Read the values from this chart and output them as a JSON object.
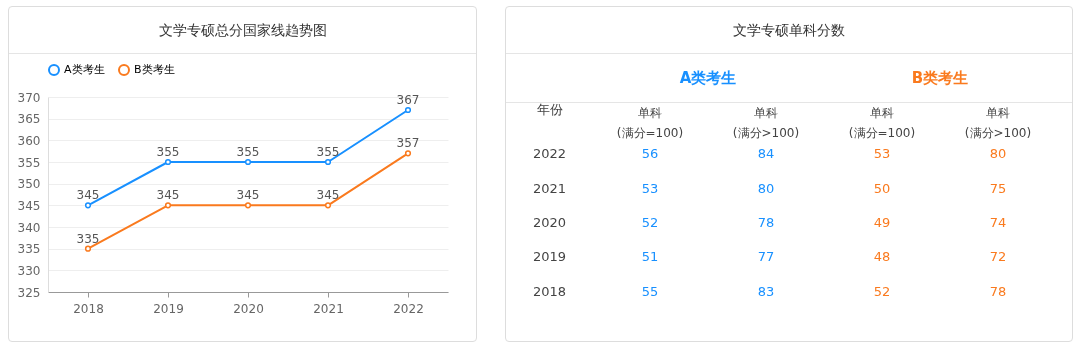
{
  "chart_data": [
    {
      "type": "line",
      "title": "文学专硕总分国家线趋势图",
      "categories": [
        "2018",
        "2019",
        "2020",
        "2021",
        "2022"
      ],
      "series": [
        {
          "name": "A类考生",
          "color": "#1890ff",
          "values": [
            345,
            355,
            355,
            355,
            367
          ]
        },
        {
          "name": "B类考生",
          "color": "#fa7a1e",
          "values": [
            335,
            345,
            345,
            345,
            357
          ]
        }
      ],
      "ylim": [
        325,
        370
      ],
      "yticks": [
        325,
        330,
        335,
        340,
        345,
        350,
        355,
        360,
        365,
        370
      ],
      "grid": "y",
      "legend": "top",
      "marker": "circle",
      "data_labels": true
    },
    {
      "type": "heatmap",
      "title": "文学专硕单科分数",
      "ylabel": "年份",
      "annotations": [
        "A类考生",
        "B类考生"
      ],
      "colors": [
        "#1890ff",
        "#1890ff",
        "#fa7a1e",
        "#fa7a1e"
      ],
      "categories": [
        "单科\n(满分=100)",
        "单科\n(满分>100)",
        "单科\n(满分=100)",
        "单科\n(满分>100)"
      ],
      "y_categories": [
        "2022",
        "2021",
        "2020",
        "2019",
        "2018"
      ],
      "cells": [
        [
          56,
          84,
          53,
          80
        ],
        [
          53,
          80,
          50,
          75
        ],
        [
          52,
          78,
          49,
          74
        ],
        [
          51,
          77,
          48,
          72
        ],
        [
          55,
          83,
          52,
          78
        ]
      ],
      "data_labels": true
    }
  ]
}
